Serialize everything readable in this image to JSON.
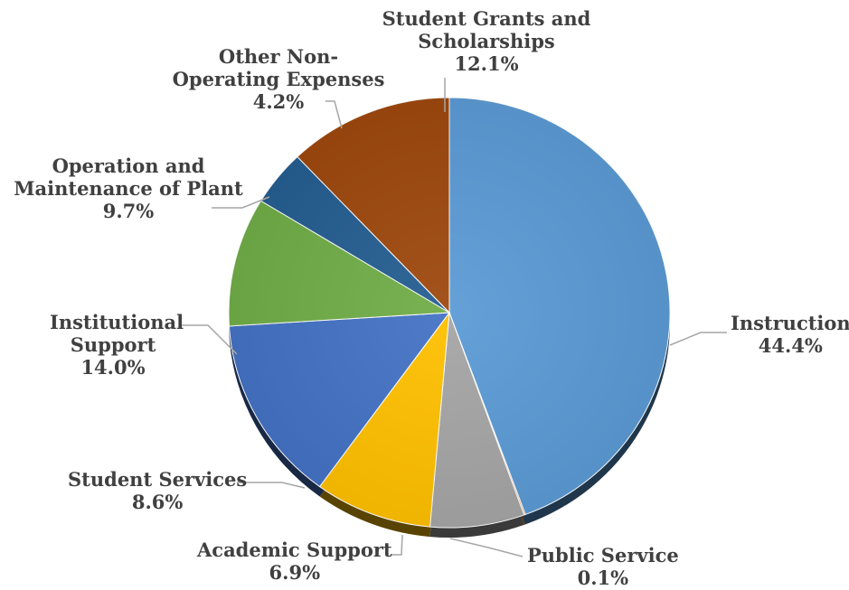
{
  "chart_data": {
    "type": "pie",
    "slices": [
      {
        "name": "Instruction",
        "value": 44.4,
        "label": "44.4%",
        "color": "#5B9BD5"
      },
      {
        "name": "Public Service",
        "value": 0.1,
        "label": "0.1%",
        "color": "#ED7D31"
      },
      {
        "name": "Academic Support",
        "value": 6.9,
        "label": "6.9%",
        "color": "#A5A5A5"
      },
      {
        "name": "Student Services",
        "value": 8.6,
        "label": "8.6%",
        "color": "#FFC000"
      },
      {
        "name": "Institutional Support",
        "value": 14.0,
        "label": "14.0%",
        "color": "#4472C4"
      },
      {
        "name": "Operation and Maintenance of Plant",
        "value": 9.7,
        "label": "9.7%",
        "color": "#70AD47"
      },
      {
        "name": "Other Non-Operating Expenses",
        "value": 4.2,
        "label": "4.2%",
        "color": "#255E91"
      },
      {
        "name": "Student Grants and Scholarships",
        "value": 12.1,
        "label": "12.1%",
        "color": "#9E480E"
      }
    ],
    "start_angle": "12 o'clock, clockwise",
    "legend": "none",
    "data_labels": "outside with leader lines"
  }
}
